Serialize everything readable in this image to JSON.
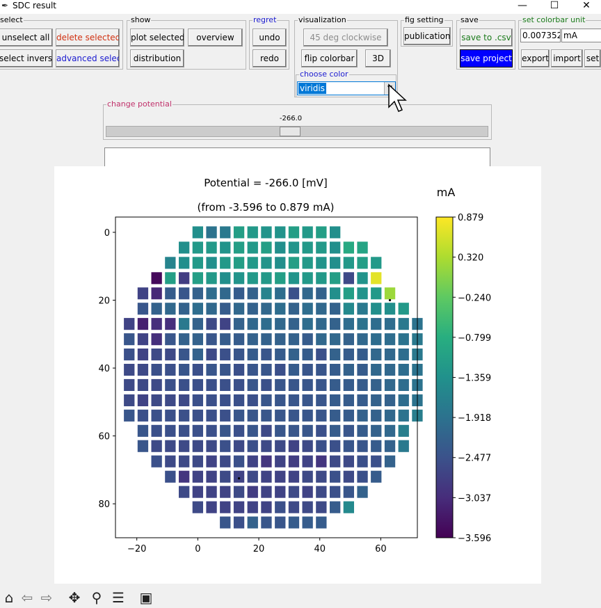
{
  "window": {
    "title": "SDC result"
  },
  "select": {
    "legend": "select",
    "unselect_all": "unselect all",
    "delete_selected": "delete selected",
    "select_inverse": "select inverse",
    "advanced_select": "advanced select"
  },
  "show": {
    "legend": "show",
    "plot_selected": "plot selected",
    "overview": "overview",
    "distribution": "distribution"
  },
  "regret": {
    "legend": "regret",
    "undo": "undo",
    "redo": "redo"
  },
  "visualization": {
    "legend": "visualization",
    "rotate": "45 deg clockwise",
    "flip_colorbar": "flip colorbar",
    "three_d": "3D",
    "choose_color_legend": "choose color",
    "colormap": "viridis"
  },
  "fig_setting": {
    "legend": "fig setting",
    "publication": "publication"
  },
  "save": {
    "legend": "save",
    "save_csv": "save to .csv",
    "save_project": "save project"
  },
  "colorbar_unit": {
    "legend": "set colorbar unit",
    "value": "0.007352",
    "unit": "mA",
    "export": "export",
    "import": "import",
    "set": "set"
  },
  "potential": {
    "legend": "change potential",
    "value_label": "-266.0",
    "slider_fraction": 0.48
  },
  "colors": {
    "accent": "#0000ff",
    "legend_pink": "#c0306a",
    "legend_green": "#1a7a1a",
    "legend_blue": "#1a1ad0"
  },
  "toolbar": {
    "icons": [
      "home-icon",
      "back-icon",
      "forward-icon",
      "pan-icon",
      "zoom-icon",
      "configure-icon",
      "save-icon"
    ]
  },
  "chart_data": {
    "type": "heatmap",
    "title": "Potential = -266.0 [mV]",
    "subtitle": "(from -3.596 to 0.879 mA)",
    "colorbar_label": "mA",
    "colormap": "viridis",
    "vmin": -3.596,
    "vmax": 0.879,
    "colorbar_ticks": [
      "0.879",
      "0.320",
      "−0.240",
      "−0.799",
      "−1.359",
      "−1.918",
      "−2.477",
      "−3.037",
      "−3.596"
    ],
    "colorbar_tick_values": [
      0.879,
      0.32,
      -0.24,
      -0.799,
      -1.359,
      -1.918,
      -2.477,
      -3.037,
      -3.596
    ],
    "xlim": [
      -27,
      72
    ],
    "ylim": [
      -4.5,
      90
    ],
    "y_inverted": true,
    "xticks": [
      -20,
      0,
      20,
      40,
      60
    ],
    "xtick_labels": [
      "−20",
      "0",
      "20",
      "40",
      "60"
    ],
    "yticks": [
      0,
      20,
      40,
      60,
      80
    ],
    "ytick_labels": [
      "0",
      "20",
      "40",
      "60",
      "80"
    ],
    "cell_step": 4.5,
    "cell_size": 3.5,
    "rows": [
      {
        "y": 0,
        "x_start": 0,
        "values": [
          -1.4,
          -1.9,
          -1.8,
          -1.1,
          -1.2,
          -1.3,
          -1.3,
          -1.1,
          -1.2,
          -1.1,
          -1.4
        ]
      },
      {
        "y": 4.5,
        "x_start": -4.5,
        "values": [
          -1.4,
          -1.2,
          -1.2,
          -1.3,
          -1.1,
          -1.2,
          -1.1,
          -1.4,
          -1.3,
          -1.2,
          -1.2,
          -1.4,
          -0.9,
          -1.0
        ]
      },
      {
        "y": 9,
        "x_start": -9,
        "values": [
          -1.6,
          -1.4,
          -1.2,
          -1.4,
          -1.2,
          -1.1,
          -1.2,
          -1.3,
          -1.4,
          -1.1,
          -1.2,
          -1.3,
          -1.4,
          -1.2,
          -1.1,
          -1.2
        ]
      },
      {
        "y": 13.5,
        "x_start": -13.5,
        "values": [
          -3.5,
          -1.1,
          -2.8,
          -1.1,
          -1.2,
          -1.4,
          -1.3,
          -1.2,
          -1.2,
          -1.1,
          -1.3,
          -1.2,
          -1.2,
          -1.1,
          -2.6,
          -1.3,
          0.7
        ]
      },
      {
        "y": 18,
        "x_start": -18,
        "values": [
          -2.7,
          -3.1,
          -2.3,
          -2.4,
          -2.2,
          -2.0,
          -2.1,
          -2.3,
          -2.2,
          -1.6,
          -2.0,
          -2.5,
          -2.1,
          -2.2,
          -1.4,
          -1.1,
          -1.3,
          -1.2,
          0.2
        ]
      },
      {
        "y": 22.5,
        "x_start": -18,
        "values": [
          -2.4,
          -2.2,
          -2.1,
          -2.2,
          -2.0,
          -2.1,
          -2.3,
          -2.1,
          -2.2,
          -2.1,
          -2.0,
          -2.2,
          -2.0,
          -2.1,
          -2.2,
          -1.5,
          -1.8,
          -1.4,
          -1.4,
          -1.2
        ]
      },
      {
        "y": 27,
        "x_start": -22.5,
        "values": [
          -2.7,
          -3.2,
          -3.0,
          -3.0,
          -1.8,
          -2.2,
          -2.6,
          -2.7,
          -2.2,
          -2.1,
          -2.0,
          -2.1,
          -2.2,
          -2.0,
          -2.1,
          -2.2,
          -2.0,
          -1.9,
          -2.0,
          -2.0,
          -1.8,
          -1.9
        ]
      },
      {
        "y": 31.5,
        "x_start": -22.5,
        "values": [
          -2.4,
          -2.7,
          -3.0,
          -2.4,
          -2.2,
          -2.2,
          -2.4,
          -2.3,
          -2.3,
          -2.2,
          -2.2,
          -2.2,
          -2.2,
          -2.3,
          -2.1,
          -2.1,
          -2.2,
          -2.1,
          -2.0,
          -2.0,
          -1.9,
          -1.8
        ]
      },
      {
        "y": 36,
        "x_start": -22.5,
        "values": [
          -2.5,
          -2.7,
          -2.6,
          -2.6,
          -2.4,
          -2.2,
          -2.6,
          -2.5,
          -2.4,
          -2.3,
          -2.4,
          -2.3,
          -2.2,
          -2.3,
          -2.5,
          -2.2,
          -2.3,
          -2.3,
          -2.1,
          -2.1,
          -2.0,
          -1.8
        ]
      },
      {
        "y": 40.5,
        "x_start": -22.5,
        "values": [
          -2.6,
          -2.6,
          -2.5,
          -2.5,
          -2.4,
          -2.5,
          -2.4,
          -2.4,
          -2.5,
          -2.4,
          -2.4,
          -2.5,
          -2.3,
          -2.4,
          -2.4,
          -2.3,
          -2.2,
          -2.3,
          -2.1,
          -2.1,
          -2.0,
          -1.9
        ]
      },
      {
        "y": 45,
        "x_start": -22.5,
        "values": [
          -2.6,
          -2.6,
          -2.6,
          -2.5,
          -2.5,
          -2.5,
          -2.5,
          -2.5,
          -2.5,
          -2.4,
          -2.5,
          -2.4,
          -2.4,
          -2.4,
          -2.4,
          -2.3,
          -2.3,
          -2.3,
          -2.2,
          -2.1,
          -2.0,
          -1.9
        ]
      },
      {
        "y": 49.5,
        "x_start": -22.5,
        "values": [
          -2.6,
          -2.7,
          -2.6,
          -2.6,
          -2.6,
          -2.5,
          -2.5,
          -2.5,
          -2.5,
          -2.5,
          -2.4,
          -2.4,
          -2.4,
          -2.4,
          -2.4,
          -2.3,
          -2.3,
          -2.3,
          -2.2,
          -2.2,
          -2.0,
          -1.9
        ]
      },
      {
        "y": 54,
        "x_start": -22.5,
        "values": [
          -2.4,
          -2.5,
          -2.5,
          -2.5,
          -2.5,
          -2.5,
          -2.5,
          -2.5,
          -2.4,
          -2.4,
          -2.4,
          -2.4,
          -2.4,
          -2.4,
          -2.4,
          -2.3,
          -2.3,
          -2.2,
          -2.2,
          -2.1,
          -1.9,
          -1.7
        ]
      },
      {
        "y": 58.5,
        "x_start": -18,
        "values": [
          -2.4,
          -2.5,
          -2.5,
          -2.5,
          -2.5,
          -2.5,
          -2.4,
          -2.5,
          -2.4,
          -2.6,
          -2.4,
          -2.4,
          -2.4,
          -2.5,
          -2.3,
          -2.4,
          -2.3,
          -2.2,
          -2.1,
          -1.7
        ]
      },
      {
        "y": 63,
        "x_start": -18,
        "values": [
          -2.4,
          -2.6,
          -2.6,
          -2.6,
          -2.6,
          -2.6,
          -2.5,
          -2.6,
          -2.5,
          -2.6,
          -2.6,
          -2.7,
          -2.6,
          -2.5,
          -2.5,
          -2.4,
          -2.4,
          -2.3,
          -2.2,
          -1.8
        ]
      },
      {
        "y": 67.5,
        "x_start": -13.5,
        "values": [
          -2.5,
          -2.6,
          -2.6,
          -2.6,
          -2.7,
          -2.6,
          -2.5,
          -2.7,
          -2.9,
          -2.7,
          -2.8,
          -2.7,
          -2.9,
          -2.6,
          -2.6,
          -2.5,
          -2.5,
          -2.2
        ]
      },
      {
        "y": 72,
        "x_start": -9,
        "values": [
          -2.5,
          -2.9,
          -2.7,
          -2.7,
          -2.6,
          -2.7,
          -2.6,
          -2.7,
          -2.7,
          -2.7,
          -2.6,
          -2.6,
          -2.5,
          -2.6,
          -2.5,
          -2.3
        ]
      },
      {
        "y": 76.5,
        "x_start": -4.5,
        "values": [
          -2.6,
          -2.7,
          -2.7,
          -2.7,
          -2.6,
          -2.8,
          -2.7,
          -2.7,
          -2.6,
          -2.7,
          -2.6,
          -2.5,
          -2.4,
          -2.2
        ]
      },
      {
        "y": 81,
        "x_start": 0,
        "values": [
          -2.6,
          -2.7,
          -2.7,
          -2.7,
          -2.7,
          -2.7,
          -2.5,
          -2.6,
          -2.6,
          -2.6,
          -2.3,
          -1.5
        ]
      },
      {
        "y": 85.5,
        "x_start": 9,
        "values": [
          -2.4,
          -2.5,
          -2.2,
          -2.4,
          -2.4,
          -2.3,
          -2.3,
          -2.3
        ]
      }
    ],
    "markers": [
      {
        "x": 63,
        "y": 20
      },
      {
        "x": 13.5,
        "y": 72.5
      }
    ]
  }
}
